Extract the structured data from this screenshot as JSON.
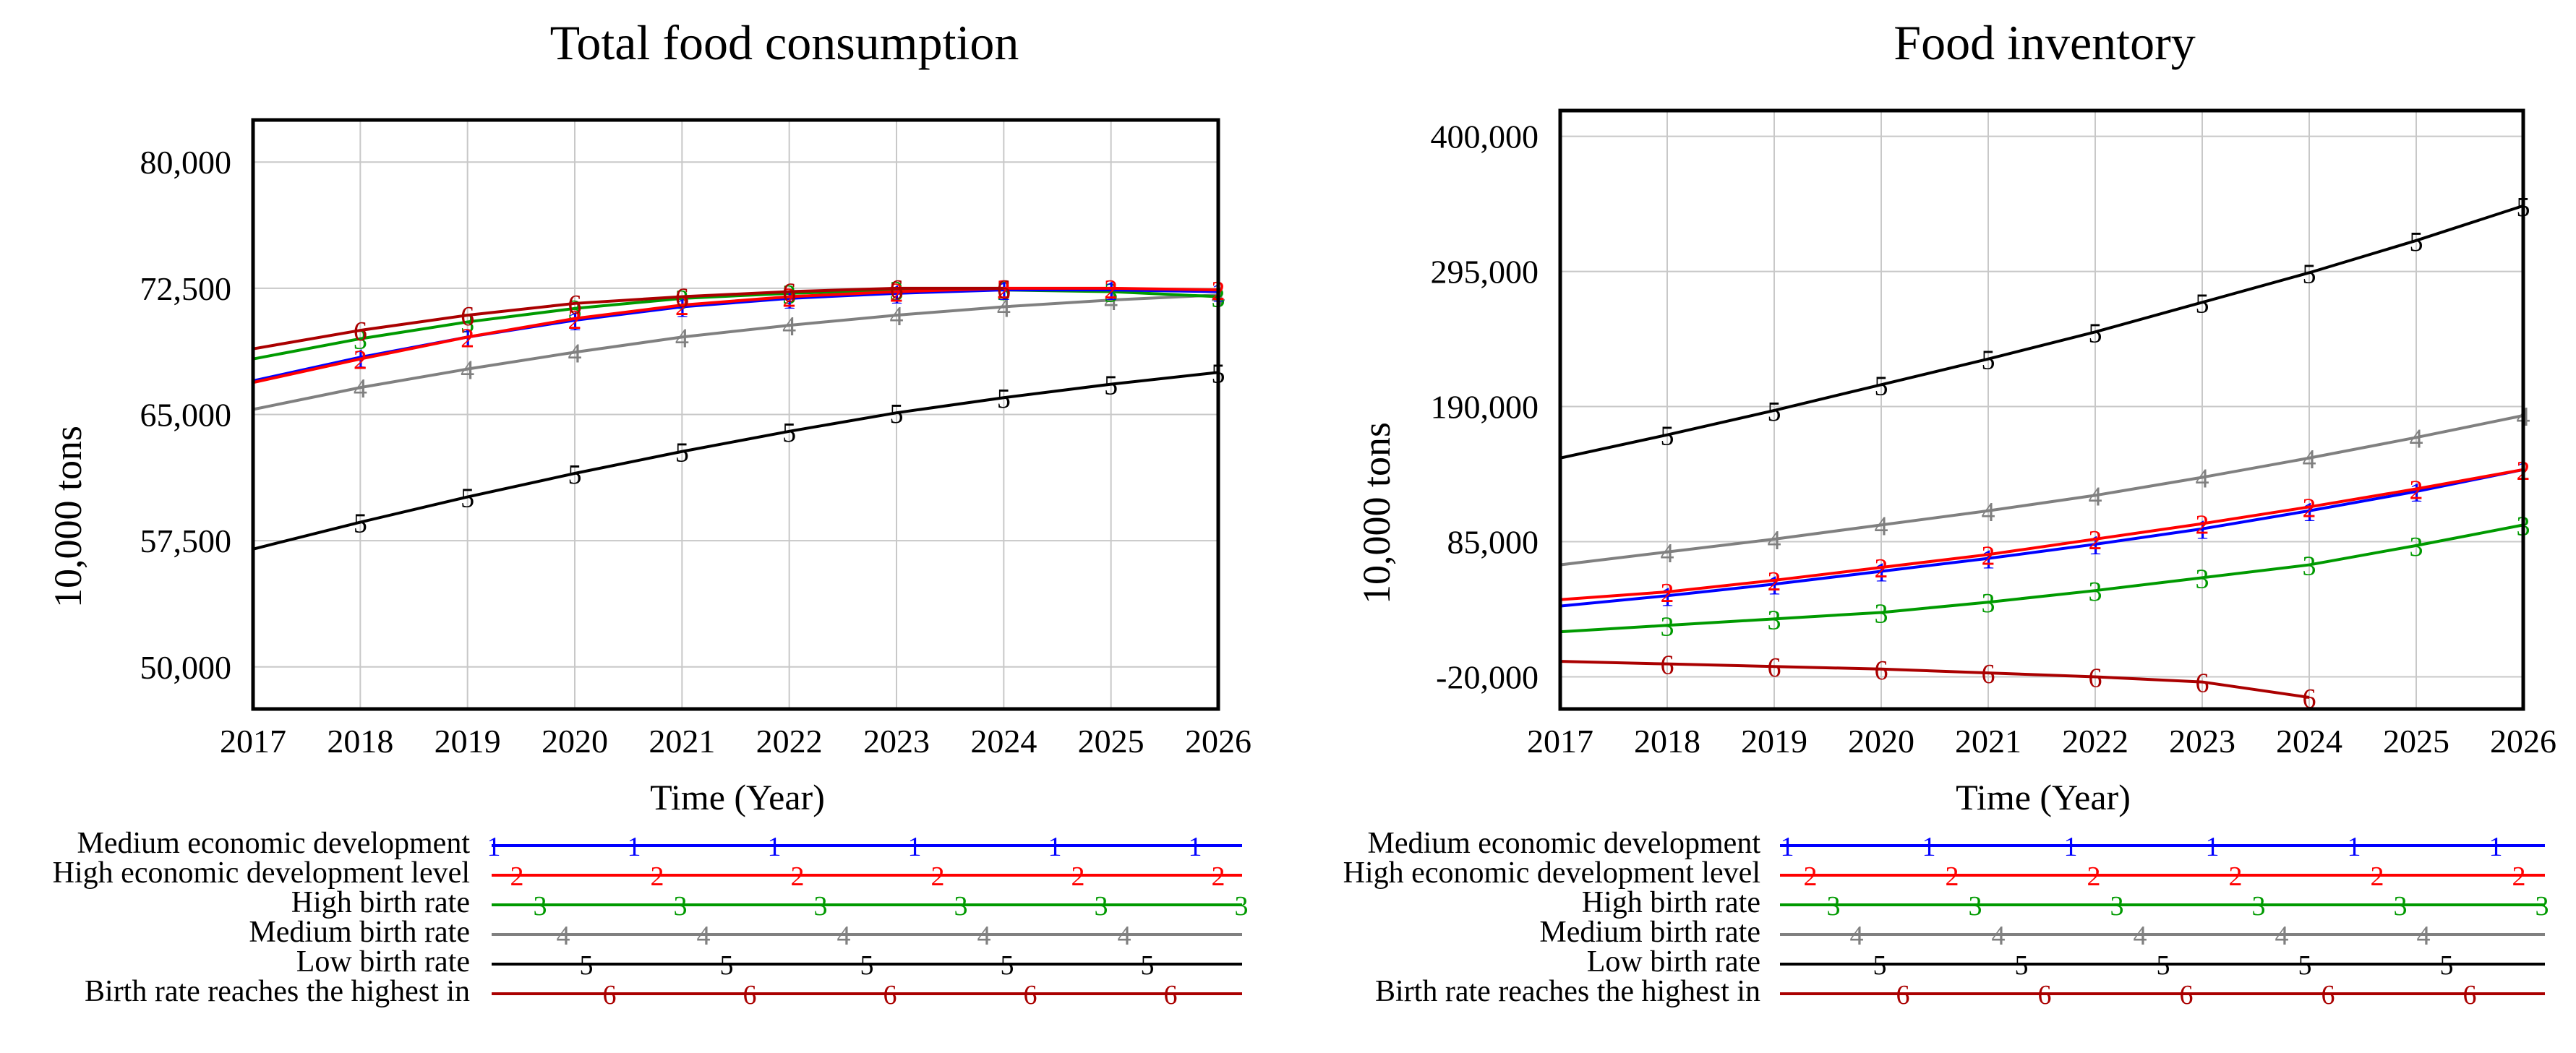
{
  "legend_entries": [
    {
      "id": "1",
      "label": "Medium economic development",
      "color": "#0000ff"
    },
    {
      "id": "2",
      "label": "High economic development level",
      "color": "#ff0000"
    },
    {
      "id": "3",
      "label": "High birth rate",
      "color": "#009a00"
    },
    {
      "id": "4",
      "label": "Medium birth rate",
      "color": "#808080"
    },
    {
      "id": "5",
      "label": "Low birth rate",
      "color": "#000000"
    },
    {
      "id": "6",
      "label": "Birth rate reaches the highest in",
      "color": "#aa0000"
    }
  ],
  "chart_data": [
    {
      "type": "line",
      "title": "Total food consumption",
      "xlabel": "Time (Year)",
      "ylabel": "10,000 tons",
      "xlim": [
        2017,
        2026
      ],
      "ylim": [
        47500,
        82500
      ],
      "x_ticks": [
        2017,
        2018,
        2019,
        2020,
        2021,
        2022,
        2023,
        2024,
        2025,
        2026
      ],
      "y_ticks": [
        50000,
        57500,
        65000,
        72500,
        80000
      ],
      "y_tick_labels": [
        "50,000",
        "57,500",
        "65,000",
        "72,500",
        "80,000"
      ],
      "grid": true,
      "series": [
        {
          "id": "1",
          "x": [
            2017,
            2018,
            2019,
            2020,
            2021,
            2022,
            2023,
            2024,
            2025,
            2026
          ],
          "values": [
            67000,
            68400,
            69600,
            70600,
            71400,
            71900,
            72200,
            72400,
            72400,
            72300
          ]
        },
        {
          "id": "2",
          "x": [
            2017,
            2018,
            2019,
            2020,
            2021,
            2022,
            2023,
            2024,
            2025,
            2026
          ],
          "values": [
            66900,
            68300,
            69600,
            70700,
            71500,
            72000,
            72300,
            72500,
            72500,
            72400
          ]
        },
        {
          "id": "3",
          "x": [
            2017,
            2018,
            2019,
            2020,
            2021,
            2022,
            2023,
            2024,
            2025,
            2026
          ],
          "values": [
            68300,
            69500,
            70500,
            71300,
            71900,
            72200,
            72400,
            72400,
            72300,
            72000
          ]
        },
        {
          "id": "4",
          "x": [
            2017,
            2018,
            2019,
            2020,
            2021,
            2022,
            2023,
            2024,
            2025,
            2026
          ],
          "values": [
            65300,
            66600,
            67700,
            68700,
            69600,
            70300,
            70900,
            71400,
            71800,
            72100
          ]
        },
        {
          "id": "5",
          "x": [
            2017,
            2018,
            2019,
            2020,
            2021,
            2022,
            2023,
            2024,
            2025,
            2026
          ],
          "values": [
            57000,
            58600,
            60100,
            61500,
            62800,
            64000,
            65100,
            66000,
            66800,
            67500
          ]
        },
        {
          "id": "6",
          "x": [
            2017,
            2018,
            2019,
            2020,
            2021,
            2022,
            2023,
            2024
          ],
          "values": [
            68900,
            70000,
            70900,
            71600,
            72000,
            72300,
            72500,
            72500
          ]
        }
      ]
    },
    {
      "type": "line",
      "title": "Food inventory",
      "xlabel": "Time (Year)",
      "ylabel": "10,000 tons",
      "xlim": [
        2017,
        2026
      ],
      "ylim": [
        -45000,
        420000
      ],
      "x_ticks": [
        2017,
        2018,
        2019,
        2020,
        2021,
        2022,
        2023,
        2024,
        2025,
        2026
      ],
      "y_ticks": [
        -20000,
        85000,
        190000,
        295000,
        400000
      ],
      "y_tick_labels": [
        "-20,000",
        "85,000",
        "190,000",
        "295,000",
        "400,000"
      ],
      "grid": true,
      "series": [
        {
          "id": "1",
          "x": [
            2017,
            2018,
            2019,
            2020,
            2021,
            2022,
            2023,
            2024,
            2025,
            2026
          ],
          "values": [
            35000,
            43000,
            52000,
            62000,
            72000,
            83000,
            95000,
            109000,
            124000,
            141000
          ]
        },
        {
          "id": "2",
          "x": [
            2017,
            2018,
            2019,
            2020,
            2021,
            2022,
            2023,
            2024,
            2025,
            2026
          ],
          "values": [
            40000,
            46000,
            55000,
            65000,
            75000,
            87000,
            99000,
            112000,
            126000,
            141000
          ]
        },
        {
          "id": "3",
          "x": [
            2017,
            2018,
            2019,
            2020,
            2021,
            2022,
            2023,
            2024,
            2025,
            2026
          ],
          "values": [
            15000,
            20000,
            25000,
            30000,
            38000,
            47000,
            57000,
            67000,
            82000,
            98000
          ]
        },
        {
          "id": "4",
          "x": [
            2017,
            2018,
            2019,
            2020,
            2021,
            2022,
            2023,
            2024,
            2025,
            2026
          ],
          "values": [
            67000,
            77000,
            87000,
            98000,
            109000,
            121000,
            135000,
            150000,
            166000,
            183000
          ]
        },
        {
          "id": "5",
          "x": [
            2017,
            2018,
            2019,
            2020,
            2021,
            2022,
            2023,
            2024,
            2025,
            2026
          ],
          "values": [
            150000,
            168000,
            187000,
            207000,
            227000,
            248000,
            271000,
            294000,
            319000,
            346000
          ]
        },
        {
          "id": "6",
          "x": [
            2017,
            2018,
            2019,
            2020,
            2021,
            2022,
            2023,
            2024
          ],
          "values": [
            -8000,
            -10000,
            -12000,
            -14000,
            -17000,
            -20000,
            -24000,
            -36000
          ]
        }
      ]
    }
  ]
}
